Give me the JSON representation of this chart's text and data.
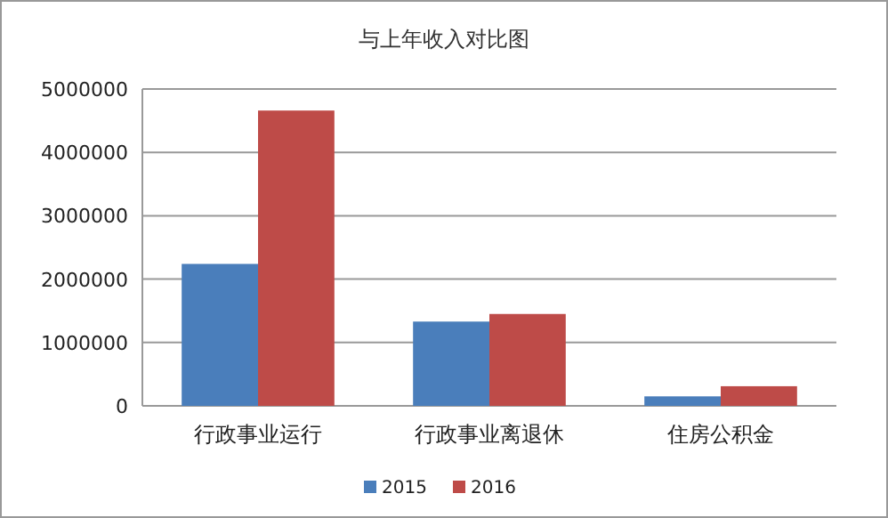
{
  "chart_data": {
    "type": "bar",
    "title": "与上年收入对比图",
    "categories": [
      "行政事业运行",
      "行政事业离退休",
      "住房公积金"
    ],
    "series": [
      {
        "name": "2015",
        "color": "#4a7ebb",
        "values": [
          2240000,
          1330000,
          150000
        ]
      },
      {
        "name": "2016",
        "color": "#be4b48",
        "values": [
          4660000,
          1450000,
          310000
        ]
      }
    ],
    "ylim": [
      0,
      5000000
    ],
    "yticks": [
      0,
      1000000,
      2000000,
      3000000,
      4000000,
      5000000
    ],
    "grid": "y",
    "legend": "bottom"
  }
}
